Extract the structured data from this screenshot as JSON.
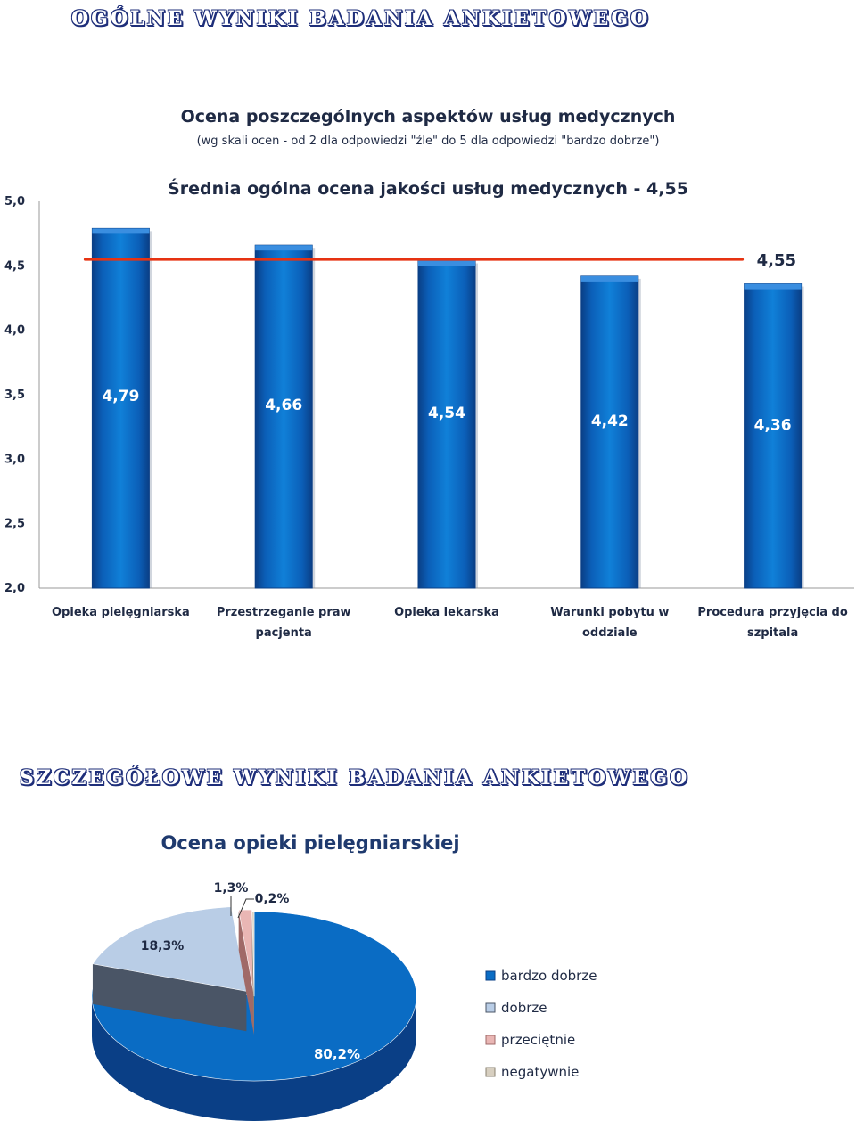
{
  "headings": {
    "general": "OGÓLNE WYNIKI BADANIA ANKIETOWEGO",
    "detailed": "SZCZEGÓŁOWE WYNIKI BADANIA ANKIETOWEGO"
  },
  "chart_data": [
    {
      "type": "bar",
      "title": "Ocena poszczególnych aspektów usług medycznych",
      "subtitle": "(wg skali ocen - od 2 dla odpowiedzi \"źle\" do 5 dla odpowiedzi \"bardzo dobrze\")",
      "annotation": "Średnia ogólna ocena jakości usług medycznych - 4,55",
      "categories": [
        [
          "Opieka pielęgniarska"
        ],
        [
          "Przestrzeganie praw",
          "pacjenta"
        ],
        [
          "Opieka lekarska"
        ],
        [
          "Warunki pobytu w",
          "oddziale"
        ],
        [
          "Procedura przyjęcia do",
          "szpitala"
        ]
      ],
      "values": [
        4.79,
        4.66,
        4.54,
        4.42,
        4.36
      ],
      "value_labels": [
        "4,79",
        "4,66",
        "4,54",
        "4,42",
        "4,36"
      ],
      "average": 4.55,
      "average_label": "4,55",
      "ylim": [
        2.0,
        5.0
      ],
      "yticks": [
        2.0,
        2.5,
        3.0,
        3.5,
        4.0,
        4.5,
        5.0
      ],
      "ytick_labels": [
        "2,0",
        "2,5",
        "3,0",
        "3,5",
        "4,0",
        "4,5",
        "5,0"
      ],
      "xlabel": "",
      "ylabel": "",
      "colors": {
        "bar": "#0a6cc4",
        "bar_dark": "#0a3f86",
        "average_line": "#e63312"
      }
    },
    {
      "type": "pie",
      "title": "Ocena opieki pielęgniarskiej",
      "labels": [
        "bardzo dobrze",
        "dobrze",
        "przeciętnie",
        "negatywnie"
      ],
      "values": [
        80.2,
        18.3,
        1.3,
        0.2
      ],
      "value_labels": [
        "80,2%",
        "18,3%",
        "1,3%",
        "0,2%"
      ],
      "legend": "right",
      "colors": [
        "#0a6cc4",
        "#b9cde6",
        "#e9b6b4",
        "#d7cfc0"
      ]
    }
  ]
}
